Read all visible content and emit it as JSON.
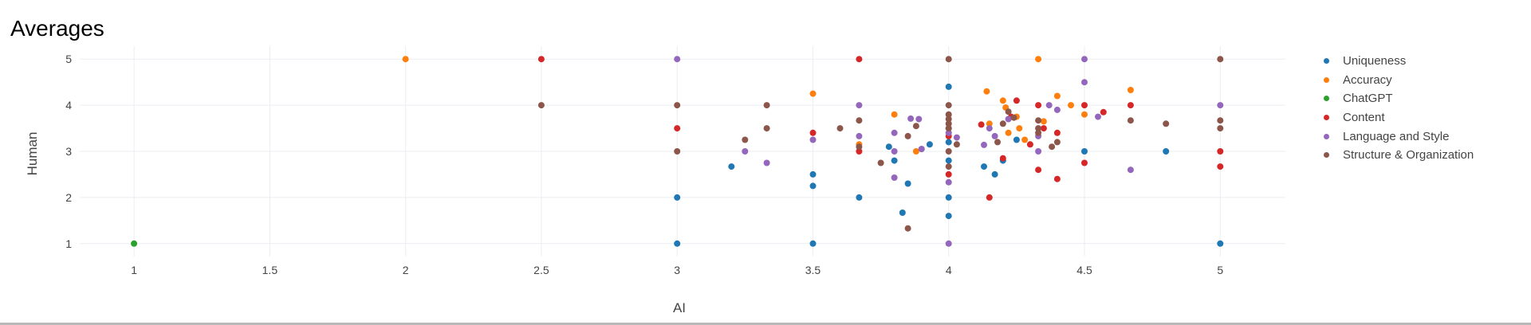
{
  "page": {
    "title": "Averages"
  },
  "chart_data": {
    "type": "scatter",
    "xlabel": "AI",
    "ylabel": "Human",
    "xlim": [
      0.8,
      5.24
    ],
    "ylim": [
      0.72,
      5.28
    ],
    "xticks": [
      1,
      1.5,
      2,
      2.5,
      3,
      3.5,
      4,
      4.5,
      5
    ],
    "xtick_labels": [
      "1",
      "1.5",
      "2",
      "2.5",
      "3",
      "3.5",
      "4",
      "4.5",
      "5"
    ],
    "yticks": [
      1,
      2,
      3,
      4,
      5
    ],
    "ytick_labels": [
      "1",
      "2",
      "3",
      "4",
      "5"
    ],
    "grid": true,
    "legend_position": "right",
    "series": [
      {
        "name": "Uniqueness",
        "color": "#1f77b4",
        "points": [
          [
            3,
            2
          ],
          [
            3,
            1
          ],
          [
            3.2,
            2.67
          ],
          [
            3.5,
            2.5
          ],
          [
            3.5,
            2.25
          ],
          [
            3.5,
            1
          ],
          [
            3.67,
            2
          ],
          [
            3.78,
            3.1
          ],
          [
            3.8,
            2.8
          ],
          [
            3.83,
            1.67
          ],
          [
            3.85,
            2.3
          ],
          [
            3.9,
            3.05
          ],
          [
            3.93,
            3.15
          ],
          [
            4,
            4.4
          ],
          [
            4,
            3.2
          ],
          [
            4,
            2.8
          ],
          [
            4,
            2
          ],
          [
            4,
            1.6
          ],
          [
            4.13,
            2.67
          ],
          [
            4.17,
            2.5
          ],
          [
            4.2,
            2.8
          ],
          [
            4.25,
            3.25
          ],
          [
            4.5,
            3
          ],
          [
            4.8,
            3
          ],
          [
            5,
            1
          ]
        ]
      },
      {
        "name": "Accuracy",
        "color": "#ff7f0e",
        "points": [
          [
            2,
            5
          ],
          [
            3.5,
            4.25
          ],
          [
            3.67,
            3.15
          ],
          [
            3.8,
            3.8
          ],
          [
            3.88,
            3
          ],
          [
            4.14,
            4.3
          ],
          [
            4.15,
            3.6
          ],
          [
            4.2,
            4.1
          ],
          [
            4.21,
            3.95
          ],
          [
            4.22,
            3.4
          ],
          [
            4.25,
            3.75
          ],
          [
            4.26,
            3.5
          ],
          [
            4.28,
            3.25
          ],
          [
            4.33,
            5
          ],
          [
            4.35,
            3.65
          ],
          [
            4.4,
            4.2
          ],
          [
            4.45,
            4
          ],
          [
            4.5,
            3.8
          ],
          [
            4.67,
            4.33
          ]
        ]
      },
      {
        "name": "ChatGPT",
        "color": "#2ca02c",
        "points": [
          [
            1,
            1
          ]
        ]
      },
      {
        "name": "Content",
        "color": "#d62728",
        "points": [
          [
            2.5,
            5
          ],
          [
            3,
            3.5
          ],
          [
            3.5,
            3.4
          ],
          [
            3.67,
            5
          ],
          [
            3.67,
            3
          ],
          [
            4,
            3.33
          ],
          [
            4,
            2.5
          ],
          [
            4.12,
            3.58
          ],
          [
            4.15,
            2
          ],
          [
            4.2,
            2.85
          ],
          [
            4.23,
            3.75
          ],
          [
            4.25,
            4.1
          ],
          [
            4.3,
            3.15
          ],
          [
            4.33,
            4
          ],
          [
            4.33,
            2.6
          ],
          [
            4.35,
            3.5
          ],
          [
            4.4,
            3.4
          ],
          [
            4.4,
            2.4
          ],
          [
            4.5,
            4
          ],
          [
            4.5,
            2.75
          ],
          [
            4.57,
            3.85
          ],
          [
            4.67,
            4
          ],
          [
            5,
            3
          ],
          [
            5,
            2.67
          ]
        ]
      },
      {
        "name": "Language and Style",
        "color": "#9467bd",
        "points": [
          [
            3,
            5
          ],
          [
            3.25,
            3
          ],
          [
            3.33,
            2.75
          ],
          [
            3.5,
            3.25
          ],
          [
            3.67,
            4
          ],
          [
            3.67,
            3.33
          ],
          [
            3.8,
            3.4
          ],
          [
            3.8,
            3
          ],
          [
            3.8,
            2.43
          ],
          [
            3.86,
            3.71
          ],
          [
            3.89,
            3.7
          ],
          [
            3.9,
            3.05
          ],
          [
            4,
            3.5
          ],
          [
            4,
            3.4
          ],
          [
            4,
            2.33
          ],
          [
            4,
            1
          ],
          [
            4.03,
            3.3
          ],
          [
            4.13,
            3.14
          ],
          [
            4.15,
            3.5
          ],
          [
            4.17,
            3.33
          ],
          [
            4.22,
            3.7
          ],
          [
            4.33,
            3.33
          ],
          [
            4.33,
            3
          ],
          [
            4.37,
            4
          ],
          [
            4.4,
            3.9
          ],
          [
            4.5,
            5
          ],
          [
            4.5,
            4.5
          ],
          [
            4.55,
            3.75
          ],
          [
            4.67,
            2.6
          ],
          [
            5,
            4
          ]
        ]
      },
      {
        "name": "Structure & Organization",
        "color": "#8c564b",
        "points": [
          [
            2.5,
            4
          ],
          [
            3,
            4
          ],
          [
            3,
            3
          ],
          [
            3.25,
            3.25
          ],
          [
            3.33,
            4
          ],
          [
            3.33,
            3.5
          ],
          [
            3.6,
            3.5
          ],
          [
            3.67,
            3.67
          ],
          [
            3.67,
            3.1
          ],
          [
            3.75,
            2.75
          ],
          [
            3.85,
            3.33
          ],
          [
            3.85,
            1.33
          ],
          [
            3.88,
            3.55
          ],
          [
            4,
            5
          ],
          [
            4,
            4
          ],
          [
            4,
            3.8
          ],
          [
            4,
            3.7
          ],
          [
            4,
            3.6
          ],
          [
            4,
            3.5
          ],
          [
            4,
            3
          ],
          [
            4,
            2.67
          ],
          [
            4.03,
            3.15
          ],
          [
            4.18,
            3.2
          ],
          [
            4.2,
            3.6
          ],
          [
            4.22,
            3.86
          ],
          [
            4.24,
            3.73
          ],
          [
            4.33,
            3.67
          ],
          [
            4.33,
            3.5
          ],
          [
            4.33,
            3.4
          ],
          [
            4.38,
            3.1
          ],
          [
            4.4,
            3.2
          ],
          [
            4.67,
            3.67
          ],
          [
            4.8,
            3.6
          ],
          [
            5,
            5
          ],
          [
            5,
            3.67
          ],
          [
            5,
            3.5
          ]
        ]
      }
    ]
  }
}
